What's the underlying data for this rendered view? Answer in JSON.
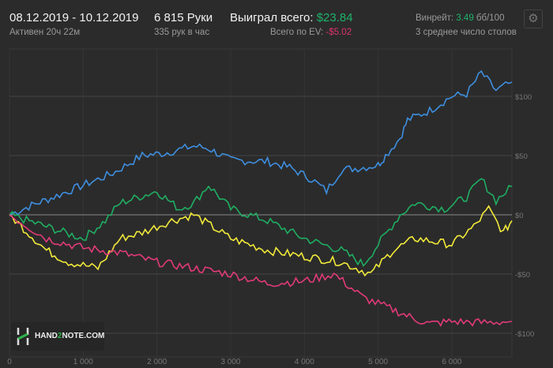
{
  "header": {
    "date_range": "08.12.2019 - 10.12.2019",
    "active": "Активен 20ч 22м",
    "hands": "6 815 Руки",
    "hands_per_hour": "335 рук в час",
    "won_label": "Выиграл всего:",
    "won_value": "$23.84",
    "ev_label": "Всего по EV:",
    "ev_value": "-$5.02",
    "winrate_label": "Винрейт:",
    "winrate_value": "3.49",
    "winrate_unit": "бб/100",
    "tables": "3 среднее число столов",
    "gear_icon": "gear-icon"
  },
  "colors": {
    "green": "#1db36a",
    "red": "#e0336b",
    "blue": "#3e8fe0",
    "line_green": "#1fae62",
    "yellow": "#f2ea3a",
    "pink": "#e23a78"
  },
  "logo": {
    "text_pre": "HAND",
    "text_mid": "2",
    "text_post": "NOTE.COM"
  },
  "chart_data": {
    "type": "line",
    "xlim": [
      0,
      6815
    ],
    "ylim": [
      -110,
      130
    ],
    "x_ticks": [
      0,
      1000,
      2000,
      3000,
      4000,
      5000,
      6000
    ],
    "x_tick_labels": [
      "0",
      "1 000",
      "2 000",
      "3 000",
      "4 000",
      "5 000",
      "6 000"
    ],
    "y_ticks": [
      100,
      50,
      0,
      -50,
      -100
    ],
    "y_tick_labels": [
      "$100",
      "$50",
      "$0",
      "-$50",
      "-$100"
    ],
    "series": [
      {
        "name": "blue",
        "color": "#3e8fe0",
        "x": [
          0,
          300,
          600,
          1000,
          1400,
          1800,
          2100,
          2500,
          2700,
          3000,
          3500,
          3800,
          4100,
          4300,
          4500,
          4800,
          5000,
          5100,
          5300,
          5400,
          5700,
          6000,
          6200,
          6400,
          6600,
          6815
        ],
        "y": [
          0,
          8,
          15,
          25,
          35,
          50,
          52,
          58,
          56,
          46,
          45,
          40,
          30,
          20,
          38,
          40,
          42,
          50,
          65,
          80,
          88,
          100,
          102,
          120,
          105,
          112
        ]
      },
      {
        "name": "green",
        "color": "#1fae62",
        "x": [
          0,
          500,
          1000,
          1300,
          1500,
          2000,
          2300,
          2500,
          2700,
          3000,
          3500,
          4000,
          4500,
          4800,
          5000,
          5300,
          5500,
          5900,
          6200,
          6400,
          6600,
          6815
        ],
        "y": [
          0,
          -10,
          -20,
          -5,
          10,
          20,
          5,
          10,
          25,
          5,
          -5,
          -20,
          -30,
          -42,
          -25,
          0,
          10,
          5,
          15,
          30,
          12,
          23.84
        ]
      },
      {
        "name": "yellow",
        "color": "#f2ea3a",
        "x": [
          0,
          500,
          800,
          1200,
          1500,
          1800,
          2200,
          2500,
          3000,
          3500,
          4000,
          4500,
          4900,
          5200,
          5500,
          6000,
          6300,
          6500,
          6700,
          6815
        ],
        "y": [
          0,
          -30,
          -40,
          -45,
          -20,
          -15,
          -5,
          0,
          -20,
          -30,
          -35,
          -40,
          -50,
          -30,
          -20,
          -25,
          -10,
          5,
          -15,
          -5.02
        ]
      },
      {
        "name": "pink",
        "color": "#e23a78",
        "x": [
          0,
          500,
          1000,
          1500,
          2000,
          2500,
          3000,
          3500,
          4000,
          4400,
          4800,
          5200,
          5500,
          5700,
          6000,
          6400,
          6815
        ],
        "y": [
          0,
          -20,
          -28,
          -32,
          -40,
          -45,
          -50,
          -58,
          -56,
          -50,
          -70,
          -80,
          -88,
          -92,
          -90,
          -91,
          -90
        ]
      }
    ]
  }
}
